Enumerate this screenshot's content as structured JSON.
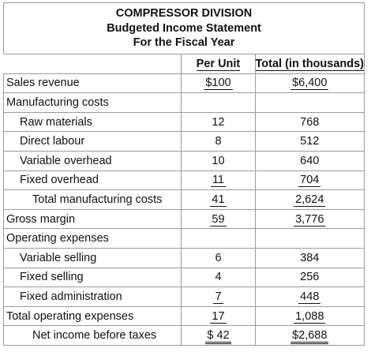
{
  "header": {
    "lines": [
      "COMPRESSOR DIVISION",
      "Budgeted Income Statement",
      "For the Fiscal Year"
    ]
  },
  "table": {
    "columns": [
      "Per Unit",
      "Total (in thousands)"
    ],
    "rows": [
      [
        "Sales revenue",
        "$100",
        "$6,400"
      ],
      [
        "Manufacturing costs"
      ],
      [
        "Raw materials",
        "12",
        "768"
      ],
      [
        "Direct labour",
        "8",
        "512"
      ],
      [
        "Variable overhead",
        "10",
        "640"
      ],
      [
        "Fixed overhead",
        "11",
        "704"
      ],
      [
        "Total manufacturing costs",
        "41",
        "2,624"
      ],
      [
        "Gross margin",
        "59",
        "3,776"
      ],
      [
        "Operating expenses"
      ],
      [
        "Variable selling",
        "6",
        "384"
      ],
      [
        "Fixed selling",
        "4",
        "256"
      ],
      [
        "Fixed administration",
        "7",
        "448"
      ],
      [
        "Total operating expenses",
        "17",
        "1,088"
      ],
      [
        "Net income before taxes",
        "$ 42",
        "$2,688"
      ]
    ]
  }
}
